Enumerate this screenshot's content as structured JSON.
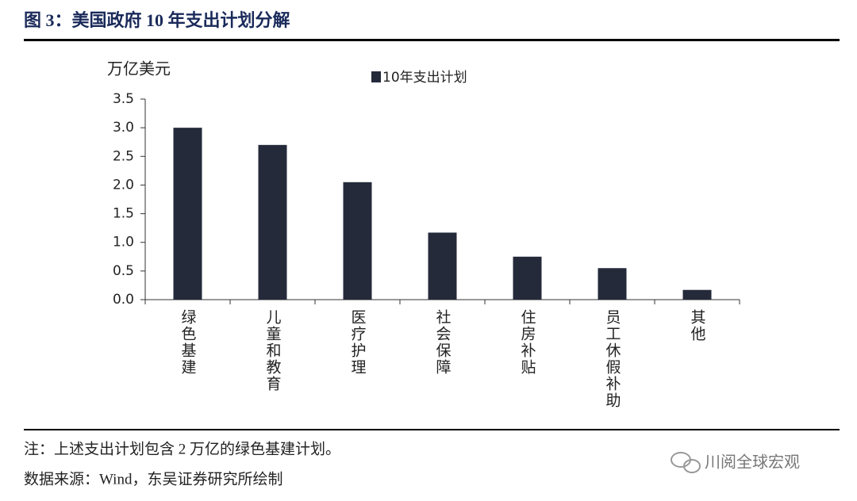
{
  "header": {
    "title": "图 3：美国政府 10 年支出计划分解"
  },
  "chart_data": {
    "type": "bar",
    "y_label": "万亿美元",
    "categories": [
      "绿色基建",
      "儿童和教育",
      "医疗护理",
      "社会保障",
      "住房补贴",
      "员工休假补助",
      "其他"
    ],
    "series": [
      {
        "name": "10年支出计划",
        "color": "#252a3a",
        "values": [
          3.0,
          2.7,
          2.05,
          1.17,
          0.75,
          0.55,
          0.17
        ]
      }
    ],
    "ylim": [
      0,
      3.5
    ],
    "yticks": [
      {
        "value": 0,
        "label": "0.0"
      },
      0.5,
      {
        "value": 1,
        "label": "1.0"
      },
      1.5,
      {
        "value": 2,
        "label": "2.0"
      },
      2.5,
      {
        "value": 3,
        "label": "3.0"
      },
      3.5
    ],
    "grid": false,
    "legend": "top"
  },
  "footer": {
    "note": "注：上述支出计划包含 2 万亿的绿色基建计划。",
    "source": "数据来源：Wind，东吴证券研究所绘制",
    "watermark": "川阅全球宏观"
  }
}
